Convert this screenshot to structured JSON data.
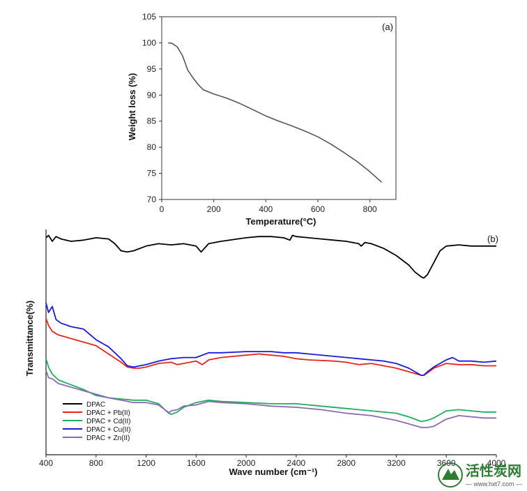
{
  "chart_data": [
    {
      "panel": "(a)",
      "type": "line",
      "xlabel": "Temperature(°C)",
      "ylabel": "Weight loss (%)",
      "xlim": [
        0,
        900
      ],
      "ylim": [
        70,
        105
      ],
      "xticks": [
        0,
        200,
        400,
        600,
        800
      ],
      "yticks": [
        70,
        75,
        80,
        85,
        90,
        95,
        100,
        105
      ],
      "grid": false,
      "series": [
        {
          "color": "#555555",
          "x": [
            25,
            40,
            60,
            80,
            100,
            120,
            140,
            160,
            200,
            250,
            300,
            350,
            400,
            450,
            500,
            550,
            600,
            650,
            700,
            750,
            800,
            845
          ],
          "y": [
            100,
            99.9,
            99.2,
            97.5,
            94.8,
            93.3,
            92.0,
            91.0,
            90.2,
            89.4,
            88.4,
            87.2,
            86.0,
            85.0,
            84.1,
            83.1,
            82.0,
            80.6,
            79.0,
            77.3,
            75.3,
            73.3
          ]
        }
      ]
    },
    {
      "panel": "(b)",
      "type": "line",
      "xlabel": "Wave number (cm⁻¹)",
      "ylabel": "Transmittance(%)",
      "xlim": [
        400,
        4000
      ],
      "xticks": [
        400,
        800,
        1200,
        1600,
        2000,
        2400,
        2800,
        3200,
        3600,
        4000
      ],
      "yticks": [],
      "grid": false,
      "legend_position": "bottom-left",
      "series": [
        {
          "name": "DPAC",
          "color": "#000000",
          "x": [
            400,
            420,
            450,
            480,
            520,
            600,
            700,
            800,
            900,
            950,
            1000,
            1050,
            1100,
            1200,
            1300,
            1400,
            1500,
            1600,
            1640,
            1700,
            1800,
            2000,
            2100,
            2200,
            2300,
            2350,
            2370,
            2400,
            2500,
            2600,
            2700,
            2800,
            2900,
            2920,
            2950,
            3000,
            3100,
            3200,
            3300,
            3350,
            3400,
            3420,
            3450,
            3500,
            3550,
            3600,
            3700,
            3800,
            3900,
            4000
          ],
          "y": [
            93,
            95,
            90,
            94,
            92,
            90,
            91,
            93,
            92,
            88,
            82,
            81,
            82,
            86,
            88,
            87,
            88,
            86,
            81,
            88,
            90,
            93,
            94,
            94,
            93,
            91,
            95,
            94,
            93,
            92,
            91,
            90,
            88,
            86,
            89,
            88,
            84,
            78,
            70,
            64,
            60,
            59,
            62,
            72,
            82,
            86,
            87,
            86,
            86,
            86
          ]
        },
        {
          "name": "DPAC + Pb(II)",
          "color": "#e8241c",
          "x": [
            400,
            420,
            450,
            500,
            600,
            700,
            800,
            900,
            1000,
            1050,
            1100,
            1150,
            1200,
            1300,
            1400,
            1450,
            1500,
            1600,
            1650,
            1700,
            1800,
            2000,
            2100,
            2200,
            2300,
            2400,
            2500,
            2700,
            2800,
            2900,
            3000,
            3100,
            3200,
            3300,
            3400,
            3420,
            3450,
            3500,
            3600,
            3700,
            3800,
            3900,
            4000
          ],
          "y": [
            25,
            19,
            14,
            11,
            8,
            5,
            2,
            -5,
            -12,
            -16,
            -17,
            -17,
            -16,
            -13,
            -12,
            -14,
            -13,
            -11,
            -14,
            -10,
            -8,
            -6,
            -5,
            -6,
            -7,
            -9,
            -10,
            -11,
            -12,
            -14,
            -13,
            -15,
            -17,
            -20,
            -23,
            -23,
            -21,
            -17,
            -13,
            -14,
            -14,
            -15,
            -15
          ]
        },
        {
          "name": "DPAC + Cd(II)",
          "color": "#1fae5c",
          "x": [
            400,
            420,
            450,
            500,
            600,
            700,
            800,
            900,
            1000,
            1100,
            1200,
            1300,
            1350,
            1400,
            1450,
            1500,
            1600,
            1700,
            1800,
            2000,
            2200,
            2400,
            2600,
            2800,
            3000,
            3200,
            3300,
            3400,
            3450,
            3500,
            3600,
            3700,
            3800,
            3900,
            4000
          ],
          "y": [
            -9,
            -16,
            -22,
            -27,
            -31,
            -35,
            -40,
            -42,
            -43,
            -44,
            -44,
            -47,
            -52,
            -56,
            -54,
            -50,
            -46,
            -44,
            -45,
            -46,
            -47,
            -47,
            -49,
            -51,
            -53,
            -55,
            -58,
            -62,
            -61,
            -59,
            -53,
            -52,
            -53,
            -54,
            -54
          ]
        },
        {
          "name": "DPAC + Cu(II)",
          "color": "#1a1adb",
          "x": [
            400,
            420,
            450,
            480,
            520,
            600,
            700,
            800,
            900,
            1000,
            1050,
            1100,
            1150,
            1200,
            1300,
            1400,
            1500,
            1600,
            1700,
            1800,
            2000,
            2100,
            2200,
            2300,
            2400,
            2500,
            2700,
            2900,
            3000,
            3100,
            3200,
            3300,
            3400,
            3420,
            3450,
            3500,
            3600,
            3650,
            3700,
            3800,
            3900,
            4000
          ],
          "y": [
            38,
            30,
            35,
            24,
            21,
            18,
            16,
            7,
            1,
            -9,
            -15,
            -16,
            -15,
            -14,
            -11,
            -9,
            -8,
            -8,
            -4,
            -4,
            -3,
            -3,
            -3,
            -4,
            -4,
            -5,
            -7,
            -9,
            -10,
            -11,
            -13,
            -17,
            -23,
            -23,
            -20,
            -16,
            -10,
            -8,
            -11,
            -11,
            -12,
            -11
          ]
        },
        {
          "name": "DPAC + Zn(II)",
          "color": "#8a6ab4",
          "x": [
            400,
            420,
            450,
            500,
            600,
            700,
            800,
            900,
            1000,
            1100,
            1200,
            1300,
            1350,
            1380,
            1400,
            1450,
            1500,
            1600,
            1700,
            1800,
            2000,
            2200,
            2400,
            2600,
            2800,
            3000,
            3200,
            3300,
            3400,
            3450,
            3500,
            3600,
            3700,
            3800,
            3900,
            4000
          ],
          "y": [
            -19,
            -25,
            -26,
            -30,
            -33,
            -36,
            -39,
            -42,
            -44,
            -46,
            -46,
            -48,
            -52,
            -55,
            -53,
            -52,
            -49,
            -48,
            -45,
            -46,
            -47,
            -49,
            -50,
            -52,
            -55,
            -57,
            -61,
            -64,
            -67,
            -67,
            -66,
            -60,
            -57,
            -58,
            -59,
            -59
          ]
        }
      ]
    }
  ],
  "panel_labels": {
    "a": "(a)",
    "b": "(b)"
  },
  "watermark": {
    "brand": "活性炭网",
    "url": "— www.hxt7.com —"
  }
}
